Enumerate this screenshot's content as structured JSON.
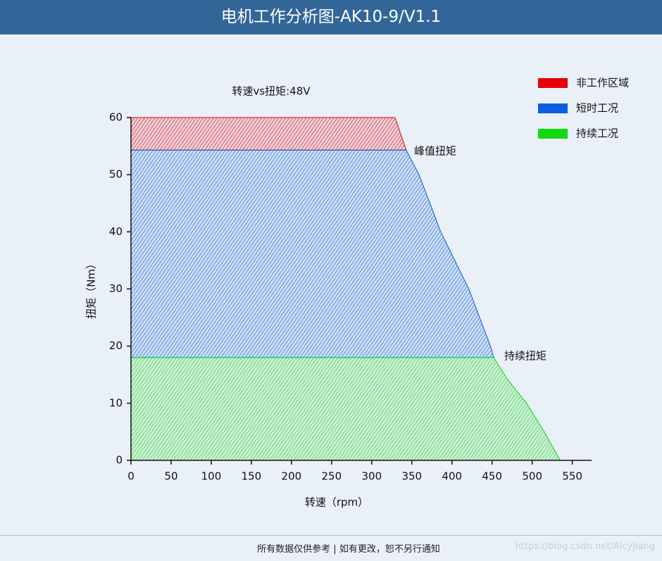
{
  "header": {
    "title": "电机工作分析图-AK10-9/V1.1"
  },
  "chart_data": {
    "type": "area",
    "title": "转速vs扭矩:48V",
    "x_label": "转速（rpm）",
    "y_label": "扭矩（Nm）",
    "xlim": [
      0,
      574
    ],
    "ylim": [
      0,
      60
    ],
    "xticks": [
      0,
      50,
      100,
      150,
      200,
      250,
      300,
      350,
      400,
      450,
      500,
      550
    ],
    "yticks": [
      0,
      10,
      20,
      30,
      40,
      50,
      60
    ],
    "legend": "top-right",
    "series": [
      {
        "name": "非工作区域",
        "color": "#e8000b",
        "x": [
          0,
          329,
          343,
          0
        ],
        "values": [
          60,
          60,
          54.3,
          54.3
        ]
      },
      {
        "name": "短时工况",
        "color": "#0a5fe0",
        "x": [
          0,
          343,
          359,
          386,
          421,
          448,
          452,
          0
        ],
        "values": [
          54.3,
          54.3,
          50,
          40,
          30,
          20,
          18,
          18
        ]
      },
      {
        "name": "持续工况",
        "color": "#12d812",
        "x": [
          0,
          452,
          470,
          493,
          515,
          535,
          0
        ],
        "values": [
          18,
          18,
          14,
          10,
          5,
          0,
          0
        ]
      }
    ],
    "annotations": [
      "峰值扭矩",
      "持续扭矩"
    ]
  },
  "footer": {
    "note": "所有数据仅供参考 | 如有更改，恕不另行通知",
    "watermark": "https://blog.csdn.net/AicyJiang"
  }
}
